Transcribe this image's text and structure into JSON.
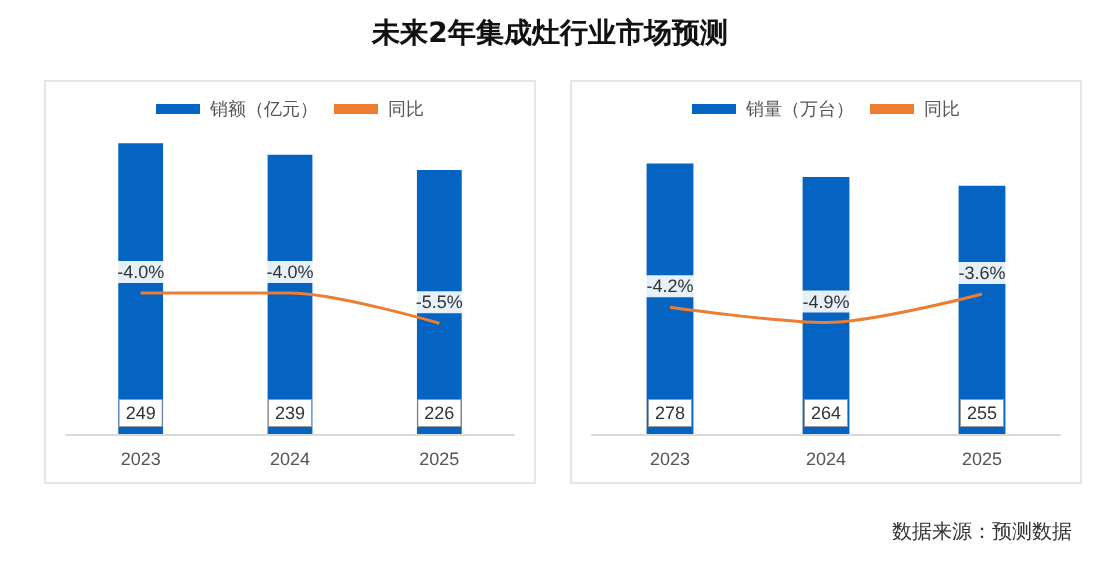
{
  "chart_data": [
    {
      "type": "bar",
      "title": "未来2年集成灶行业市场预测",
      "categories": [
        "2023",
        "2024",
        "2025"
      ],
      "legend": "top",
      "tick_labels": "x",
      "series": [
        {
          "name": "销额（亿元）",
          "color": "#0563c1",
          "values": [
            249,
            239,
            226
          ],
          "value_labels": [
            "249",
            "239",
            "226"
          ]
        },
        {
          "name": "同比",
          "type": "line",
          "axis": "y2",
          "color": "#ed7d31",
          "values": [
            -4.0,
            -4.0,
            -5.5
          ],
          "value_labels": [
            "-4.0%",
            "-4.0%",
            "-5.5%"
          ]
        }
      ]
    },
    {
      "type": "bar",
      "categories": [
        "2023",
        "2024",
        "2025"
      ],
      "legend": "top",
      "tick_labels": "x",
      "annotations": [
        "数据来源：预测数据"
      ],
      "series": [
        {
          "name": "销量（万台）",
          "color": "#0563c1",
          "values": [
            278,
            264,
            255
          ],
          "value_labels": [
            "278",
            "264",
            "255"
          ]
        },
        {
          "name": "同比",
          "type": "line",
          "axis": "y2",
          "color": "#ed7d31",
          "values": [
            -4.2,
            -4.9,
            -3.6
          ],
          "value_labels": [
            "-4.2%",
            "-4.9%",
            "-3.6%"
          ]
        }
      ]
    }
  ]
}
